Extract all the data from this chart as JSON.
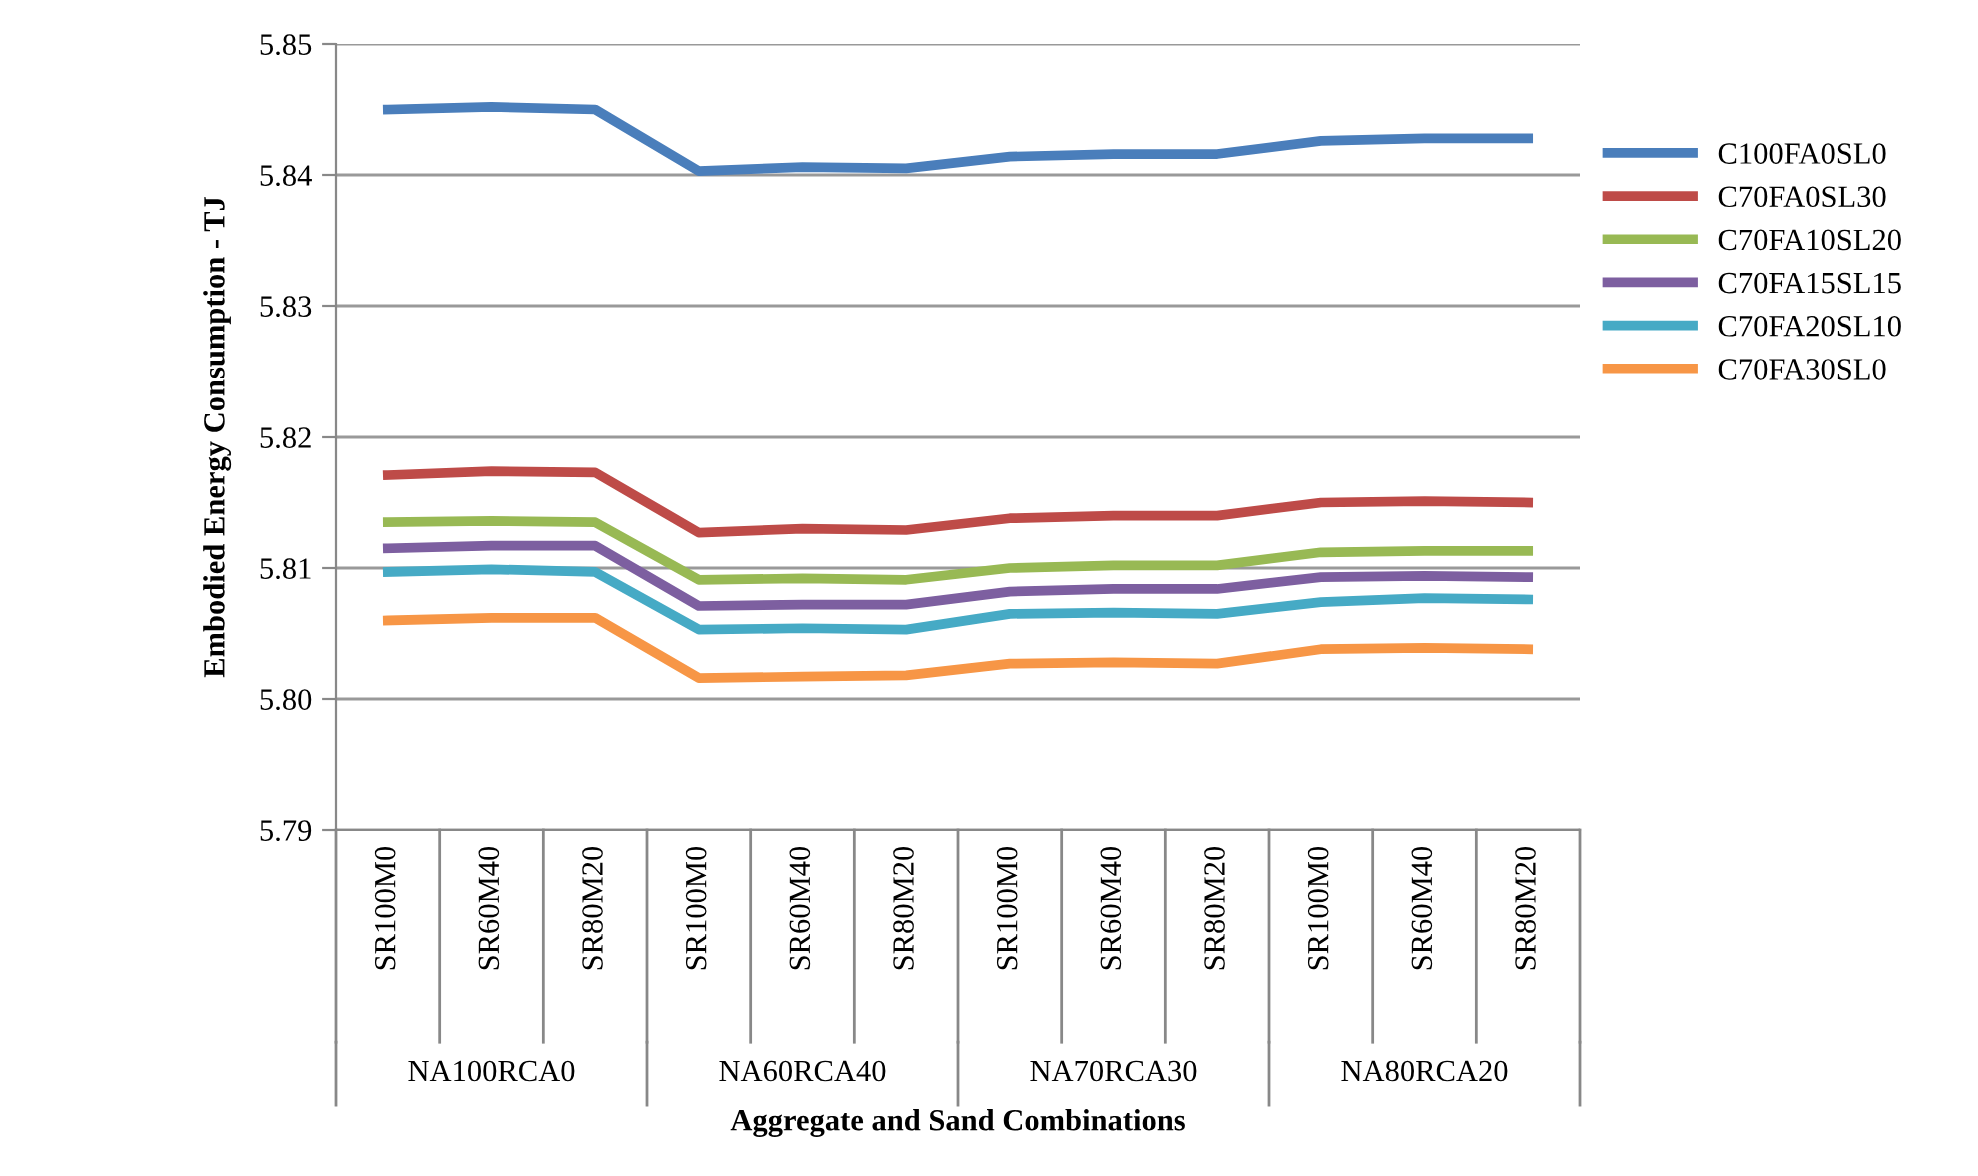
{
  "chart_data": {
    "type": "line",
    "xlabel": "Aggregate and Sand Combinations",
    "ylabel": "Embodied Energy Consumption - TJ",
    "categories": [
      "SR100M0",
      "SR60M40",
      "SR80M20",
      "SR100M0",
      "SR60M40",
      "SR80M20",
      "SR100M0",
      "SR60M40",
      "SR80M20",
      "SR100M0",
      "SR60M40",
      "SR80M20"
    ],
    "annotations": [
      "NA100RCA0",
      "NA60RCA40",
      "NA70RCA30",
      "NA80RCA20"
    ],
    "series": [
      {
        "name": "C100FA0SL0",
        "color": "#4a7ebb",
        "values": [
          5.845,
          5.8452,
          5.845,
          5.8403,
          5.8406,
          5.8405,
          5.8414,
          5.8416,
          5.8416,
          5.8426,
          5.8428,
          5.8428
        ]
      },
      {
        "name": "C70FA0SL30",
        "color": "#be4b48",
        "values": [
          5.8171,
          5.8174,
          5.8173,
          5.8127,
          5.813,
          5.8129,
          5.8138,
          5.814,
          5.814,
          5.815,
          5.8151,
          5.815
        ]
      },
      {
        "name": "C70FA10SL20",
        "color": "#98b954",
        "values": [
          5.8135,
          5.8136,
          5.8135,
          5.8091,
          5.8092,
          5.8091,
          5.81,
          5.8102,
          5.8102,
          5.8112,
          5.8113,
          5.8113
        ]
      },
      {
        "name": "C70FA15SL15",
        "color": "#7d5fa0",
        "values": [
          5.8115,
          5.8117,
          5.8117,
          5.8071,
          5.8072,
          5.8072,
          5.8082,
          5.8084,
          5.8084,
          5.8093,
          5.8094,
          5.8093
        ]
      },
      {
        "name": "C70FA20SL10",
        "color": "#46aac5",
        "values": [
          5.8097,
          5.8099,
          5.8097,
          5.8053,
          5.8054,
          5.8053,
          5.8065,
          5.8066,
          5.8065,
          5.8074,
          5.8077,
          5.8076
        ]
      },
      {
        "name": "C70FA30SL0",
        "color": "#f79646",
        "values": [
          5.806,
          5.8062,
          5.8062,
          5.8016,
          5.8017,
          5.8018,
          5.8027,
          5.8028,
          5.8027,
          5.8038,
          5.8039,
          5.8038
        ]
      }
    ],
    "ylim": [
      5.79,
      5.85
    ],
    "yticks": [
      5.79,
      {
        "value": 5.8,
        "label": "5.80"
      },
      5.81,
      5.82,
      5.83,
      5.84,
      5.85
    ],
    "grid": "y",
    "legend": "right",
    "marker": "none",
    "line_style": "solid"
  }
}
